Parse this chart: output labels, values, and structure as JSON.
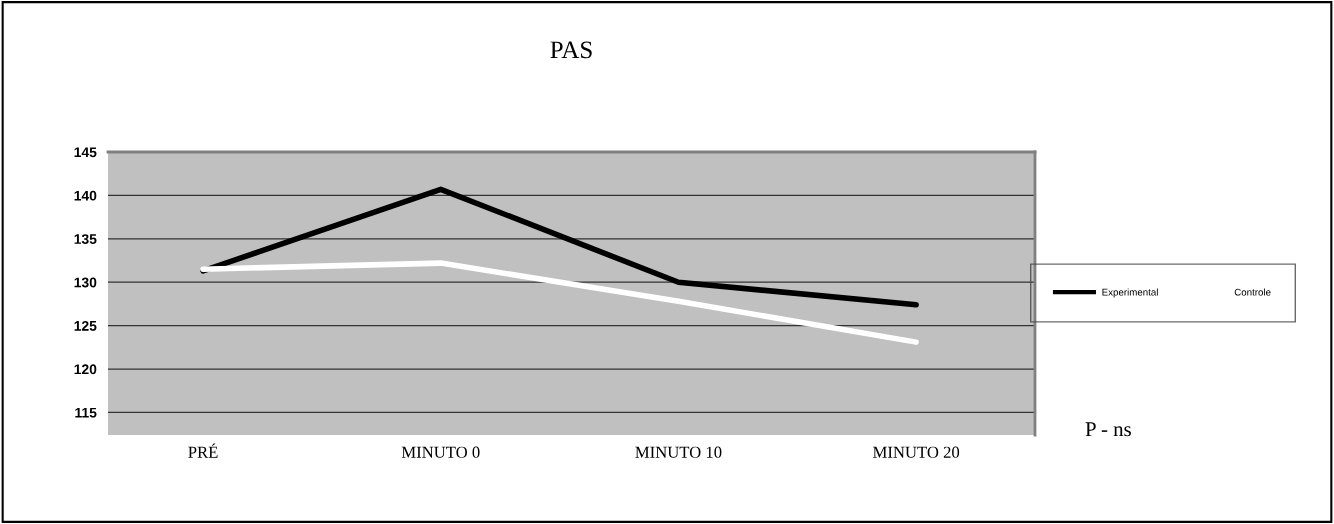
{
  "chart_data": {
    "type": "line",
    "title": "PAS",
    "categories": [
      "PRÉ",
      "MINUTO 0",
      "MINUTO 10",
      "MINUTO 20"
    ],
    "series": [
      {
        "name": "Experimental",
        "color": "#000000",
        "values": [
          131.3,
          140.7,
          130.0,
          127.4
        ]
      },
      {
        "name": "Controle",
        "color": "#ffffff",
        "values": [
          131.5,
          132.2,
          127.8,
          123.1
        ]
      }
    ],
    "ylim": [
      112.4,
      145
    ],
    "yticks": [
      115,
      120,
      125,
      130,
      135,
      140,
      145
    ],
    "grid": "y",
    "legend": "right",
    "marker": "none",
    "line_style": "solid",
    "annotations": [
      "P - ns"
    ]
  }
}
